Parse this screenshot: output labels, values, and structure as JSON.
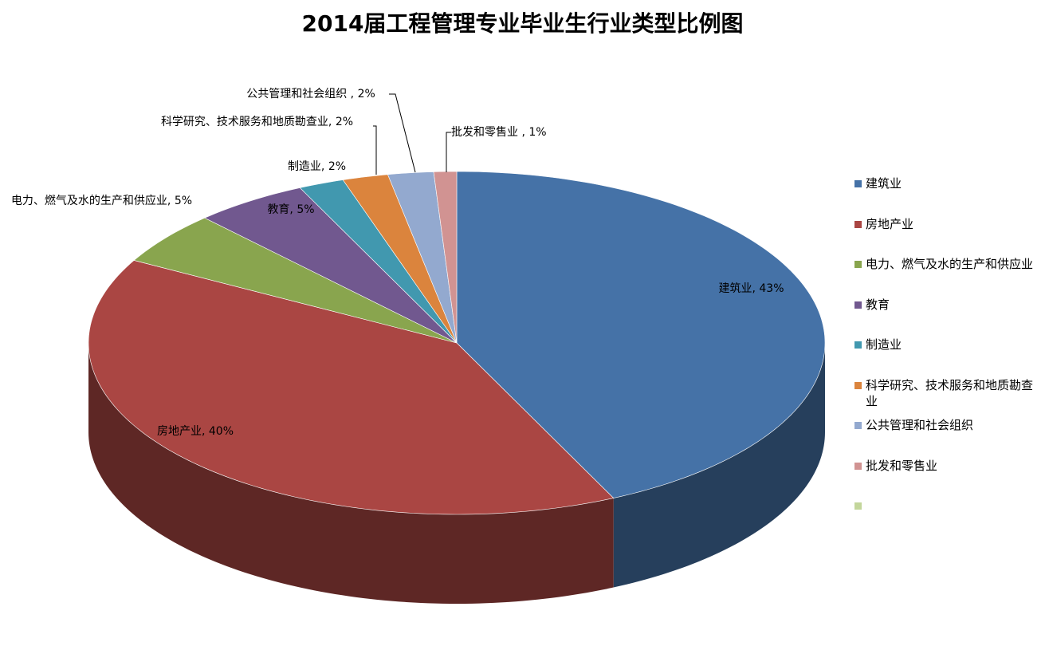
{
  "chart_data": {
    "type": "pie3d",
    "title": "2014届工程管理专业毕业生行业类型比例图",
    "categories": [
      "建筑业",
      "房地产业",
      "电力、燃气及水的生产和供应业",
      "教育",
      "制造业",
      "科学研究、技术服务和地质勘查业",
      "公共管理和社会组织",
      "批发和零售业",
      null
    ],
    "values": [
      43,
      40,
      5,
      5,
      2,
      2,
      2,
      1,
      0
    ],
    "value_labels": [
      "建筑业, 43%",
      "房地产业, 40%",
      "电力、燃气及水的生产和供应业, 5%",
      "教育, 5%",
      "制造业, 2%",
      "科学研究、技术服务和地质勘查业, 2%",
      "公共管理和社会组织 , 2%",
      "批发和零售业 , 1%",
      null
    ],
    "colors": [
      "#4572a7",
      "#aa4643",
      "#89a54e",
      "#71588f",
      "#4198af",
      "#db843d",
      "#93a9cf",
      "#d19392",
      "#c3d69b"
    ],
    "legend": "right"
  }
}
